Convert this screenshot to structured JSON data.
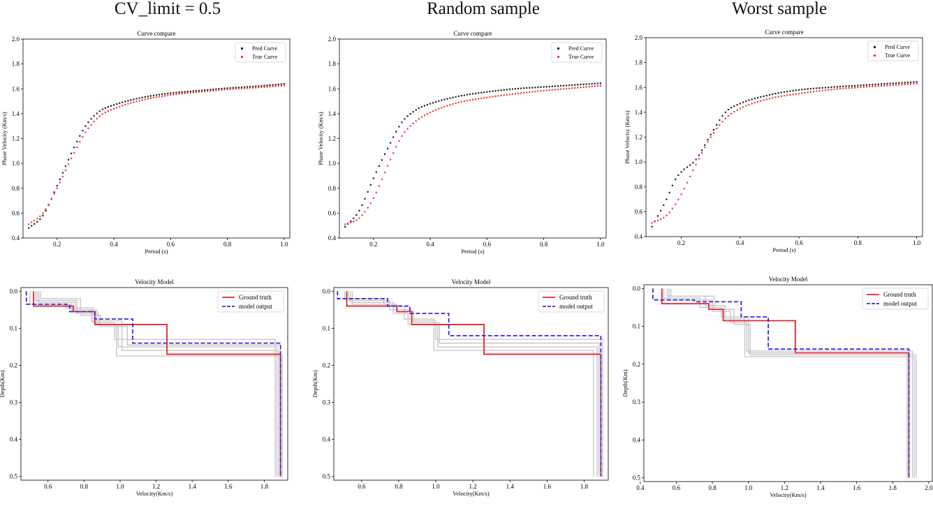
{
  "column_titles": [
    "CV_limit = 0.5",
    "Random sample",
    "Worst sample"
  ],
  "colors": {
    "pred": "#222222",
    "true": "#ee3b3b",
    "ground_truth": "#e8232a",
    "model_output": "#2b2bd9",
    "candidates": "#c8c8c8",
    "axis": "#000000"
  },
  "chart_data": [
    {
      "id": "cv-curve",
      "type": "scatter",
      "title": "Curve compare",
      "xlabel": "Period (s)",
      "ylabel": "Phase Velocity (Km/s)",
      "xlim": [
        0.08,
        1.02
      ],
      "ylim": [
        0.4,
        2.0
      ],
      "xticks": [
        0.2,
        0.4,
        0.6,
        0.8,
        1.0
      ],
      "xtick_labels": [
        "0.2",
        "0.4",
        "0.6",
        "0.8",
        "1.0"
      ],
      "yticks": [
        0.4,
        0.6,
        0.8,
        1.0,
        1.2,
        1.4,
        1.6,
        1.8,
        2.0
      ],
      "ytick_labels": [
        "0.4",
        "0.6",
        "0.8",
        "1.0",
        "1.2",
        "1.4",
        "1.6",
        "1.8",
        "2.0"
      ],
      "legend": [
        "Pred Curve",
        "True Curve"
      ],
      "legend_position": "top-right",
      "series": [
        {
          "name": "Pred Curve",
          "x": [
            0.1,
            0.15,
            0.2,
            0.25,
            0.3,
            0.35,
            0.4,
            0.5,
            0.6,
            0.7,
            0.8,
            0.9,
            1.0
          ],
          "y": [
            0.48,
            0.58,
            0.82,
            1.08,
            1.3,
            1.42,
            1.47,
            1.53,
            1.565,
            1.585,
            1.605,
            1.62,
            1.64
          ]
        },
        {
          "name": "True Curve",
          "x": [
            0.1,
            0.15,
            0.2,
            0.25,
            0.3,
            0.35,
            0.4,
            0.5,
            0.6,
            0.7,
            0.8,
            0.9,
            1.0
          ],
          "y": [
            0.51,
            0.6,
            0.8,
            1.04,
            1.25,
            1.38,
            1.44,
            1.51,
            1.55,
            1.575,
            1.595,
            1.61,
            1.625
          ]
        }
      ]
    },
    {
      "id": "random-curve",
      "type": "scatter",
      "title": "Curve compare",
      "xlabel": "Period (s)",
      "ylabel": "Phase Velocity (Km/s)",
      "xlim": [
        0.08,
        1.02
      ],
      "ylim": [
        0.4,
        2.0
      ],
      "xticks": [
        0.2,
        0.4,
        0.6,
        0.8,
        1.0
      ],
      "xtick_labels": [
        "0.2",
        "0.4",
        "0.6",
        "0.8",
        "1.0"
      ],
      "yticks": [
        0.4,
        0.6,
        0.8,
        1.0,
        1.2,
        1.4,
        1.6,
        1.8,
        2.0
      ],
      "ytick_labels": [
        "0.4",
        "0.6",
        "0.8",
        "1.0",
        "1.2",
        "1.4",
        "1.6",
        "1.8",
        "2.0"
      ],
      "legend": [
        "Pred Curve",
        "True Curve"
      ],
      "legend_position": "top-right",
      "series": [
        {
          "name": "Pred Curve",
          "x": [
            0.1,
            0.15,
            0.2,
            0.25,
            0.3,
            0.35,
            0.4,
            0.5,
            0.6,
            0.7,
            0.8,
            0.9,
            1.0
          ],
          "y": [
            0.49,
            0.62,
            0.88,
            1.12,
            1.33,
            1.43,
            1.48,
            1.54,
            1.575,
            1.6,
            1.615,
            1.63,
            1.645
          ]
        },
        {
          "name": "True Curve",
          "x": [
            0.1,
            0.15,
            0.2,
            0.25,
            0.3,
            0.35,
            0.4,
            0.5,
            0.6,
            0.7,
            0.8,
            0.9,
            1.0
          ],
          "y": [
            0.51,
            0.56,
            0.72,
            0.98,
            1.22,
            1.34,
            1.41,
            1.49,
            1.53,
            1.56,
            1.585,
            1.605,
            1.625
          ]
        }
      ]
    },
    {
      "id": "worst-curve",
      "type": "scatter",
      "title": "Curve compare",
      "xlabel": "Period (s)",
      "ylabel": "Phase Velocity (Km/s)",
      "xlim": [
        0.08,
        1.02
      ],
      "ylim": [
        0.4,
        2.0
      ],
      "xticks": [
        0.2,
        0.4,
        0.6,
        0.8,
        1.0
      ],
      "xtick_labels": [
        "0.2",
        "0.4",
        "0.6",
        "0.8",
        "1.0"
      ],
      "yticks": [
        0.4,
        0.6,
        0.8,
        1.0,
        1.2,
        1.4,
        1.6,
        1.8,
        2.0
      ],
      "ytick_labels": [
        "0.4",
        "0.6",
        "0.8",
        "1.0",
        "1.2",
        "1.4",
        "1.6",
        "1.8",
        "2.0"
      ],
      "legend": [
        "Pred Curve",
        "True Curve"
      ],
      "legend_position": "top-right",
      "series": [
        {
          "name": "Pred Curve",
          "x": [
            0.1,
            0.15,
            0.18,
            0.2,
            0.25,
            0.3,
            0.35,
            0.4,
            0.5,
            0.6,
            0.7,
            0.8,
            0.9,
            1.0
          ],
          "y": [
            0.48,
            0.7,
            0.86,
            0.92,
            1.02,
            1.22,
            1.4,
            1.47,
            1.54,
            1.58,
            1.6,
            1.615,
            1.63,
            1.645
          ]
        },
        {
          "name": "True Curve",
          "x": [
            0.1,
            0.15,
            0.18,
            0.2,
            0.25,
            0.3,
            0.35,
            0.4,
            0.5,
            0.6,
            0.7,
            0.8,
            0.9,
            1.0
          ],
          "y": [
            0.51,
            0.57,
            0.66,
            0.74,
            0.98,
            1.2,
            1.35,
            1.43,
            1.51,
            1.55,
            1.58,
            1.6,
            1.615,
            1.63
          ]
        }
      ]
    },
    {
      "id": "cv-model",
      "type": "line",
      "title": "Velocity Model",
      "xlabel": "Velocity(Km/s)",
      "ylabel": "Depth(Km)",
      "xlim": [
        0.45,
        1.93
      ],
      "ylim": [
        0.51,
        -0.01
      ],
      "y_inverted": true,
      "xticks": [
        0.6,
        0.8,
        1.0,
        1.2,
        1.4,
        1.6,
        1.8
      ],
      "xtick_labels": [
        "0.6",
        "0.8",
        "1.0",
        "1.2",
        "1.4",
        "1.6",
        "1.8"
      ],
      "yticks": [
        0.0,
        0.1,
        0.2,
        0.3,
        0.4,
        0.5
      ],
      "ytick_labels": [
        "0.0",
        "0.1",
        "0.2",
        "0.3",
        "0.4",
        "0.5"
      ],
      "legend": [
        "Ground truth",
        "model output"
      ],
      "legend_position": "top-right",
      "ground_truth": {
        "v": [
          0.52,
          0.74,
          0.86,
          1.26,
          1.89
        ],
        "d": [
          0.04,
          0.055,
          0.09,
          0.17,
          0.5
        ]
      },
      "model_output": {
        "v": [
          0.48,
          0.72,
          0.86,
          1.07,
          1.89
        ],
        "d": [
          0.035,
          0.055,
          0.075,
          0.14,
          0.5
        ]
      },
      "candidates": [
        {
          "v": [
            0.53,
            0.76,
            0.88,
            0.99,
            1.87
          ],
          "d": [
            0.025,
            0.06,
            0.09,
            0.15,
            0.5
          ]
        },
        {
          "v": [
            0.55,
            0.73,
            0.84,
            1.01,
            1.88
          ],
          "d": [
            0.03,
            0.05,
            0.08,
            0.16,
            0.5
          ]
        },
        {
          "v": [
            0.5,
            0.7,
            0.85,
            0.97,
            1.86
          ],
          "d": [
            0.035,
            0.045,
            0.085,
            0.13,
            0.5
          ]
        },
        {
          "v": [
            0.56,
            0.78,
            0.89,
            1.04,
            1.89
          ],
          "d": [
            0.02,
            0.065,
            0.095,
            0.145,
            0.5
          ]
        },
        {
          "v": [
            0.54,
            0.75,
            0.87,
            0.98,
            1.9
          ],
          "d": [
            0.03,
            0.05,
            0.09,
            0.175,
            0.5
          ]
        }
      ]
    },
    {
      "id": "random-model",
      "type": "line",
      "title": "Velocity Model",
      "xlabel": "Velocity(Km/s)",
      "ylabel": "Depth(Km)",
      "xlim": [
        0.45,
        1.93
      ],
      "ylim": [
        0.51,
        -0.01
      ],
      "y_inverted": true,
      "xticks": [
        0.6,
        0.8,
        1.0,
        1.2,
        1.4,
        1.6,
        1.8
      ],
      "xtick_labels": [
        "0.6",
        "0.8",
        "1.0",
        "1.2",
        "1.4",
        "1.6",
        "1.8"
      ],
      "yticks": [
        0.0,
        0.1,
        0.2,
        0.3,
        0.4,
        0.5
      ],
      "ytick_labels": [
        "0.0",
        "0.1",
        "0.2",
        "0.3",
        "0.4",
        "0.5"
      ],
      "legend": [
        "Ground truth",
        "model output"
      ],
      "legend_position": "top-right",
      "ground_truth": {
        "v": [
          0.52,
          0.79,
          0.87,
          1.26,
          1.89
        ],
        "d": [
          0.04,
          0.055,
          0.09,
          0.17,
          0.5
        ]
      },
      "model_output": {
        "v": [
          0.47,
          0.74,
          0.86,
          1.07,
          1.89
        ],
        "d": [
          0.02,
          0.04,
          0.06,
          0.12,
          0.5
        ]
      },
      "candidates": [
        {
          "v": [
            0.53,
            0.75,
            0.87,
            1.0,
            1.9
          ],
          "d": [
            0.025,
            0.05,
            0.08,
            0.13,
            0.5
          ]
        },
        {
          "v": [
            0.54,
            0.77,
            0.85,
            1.01,
            1.87
          ],
          "d": [
            0.03,
            0.06,
            0.09,
            0.15,
            0.5
          ]
        },
        {
          "v": [
            0.51,
            0.72,
            0.83,
            0.99,
            1.85
          ],
          "d": [
            0.02,
            0.04,
            0.075,
            0.16,
            0.5
          ]
        },
        {
          "v": [
            0.55,
            0.79,
            0.88,
            1.02,
            1.88
          ],
          "d": [
            0.035,
            0.055,
            0.085,
            0.14,
            0.5
          ]
        }
      ]
    },
    {
      "id": "worst-model",
      "type": "line",
      "title": "Velocity Model",
      "xlabel": "Velocity(Km/s)",
      "ylabel": "Depth(Km)",
      "xlim": [
        0.42,
        2.02
      ],
      "ylim": [
        0.51,
        -0.01
      ],
      "y_inverted": true,
      "xticks": [
        0.4,
        0.6,
        0.8,
        1.0,
        1.2,
        1.4,
        1.6,
        1.8,
        2.0
      ],
      "xtick_labels": [
        "0.4",
        "0.6",
        "0.8",
        "1.0",
        "1.2",
        "1.4",
        "1.6",
        "1.8",
        "2.0"
      ],
      "yticks": [
        0.0,
        0.1,
        0.2,
        0.3,
        0.4,
        0.5
      ],
      "ytick_labels": [
        "0.0",
        "0.1",
        "0.2",
        "0.3",
        "0.4",
        "0.5"
      ],
      "legend": [
        "Ground truth",
        "model output"
      ],
      "legend_position": "top-right",
      "ground_truth": {
        "v": [
          0.52,
          0.78,
          0.86,
          1.26,
          1.89
        ],
        "d": [
          0.04,
          0.055,
          0.085,
          0.17,
          0.5
        ]
      },
      "model_output": {
        "v": [
          0.47,
          0.7,
          0.96,
          1.11,
          1.89
        ],
        "d": [
          0.03,
          0.035,
          0.075,
          0.16,
          0.5
        ]
      },
      "candidates": [
        {
          "v": [
            0.55,
            0.76,
            0.87,
            0.98,
            1.92
          ],
          "d": [
            0.02,
            0.045,
            0.08,
            0.18,
            0.5
          ]
        },
        {
          "v": [
            0.56,
            0.8,
            0.9,
            0.99,
            1.91
          ],
          "d": [
            0.03,
            0.06,
            0.09,
            0.165,
            0.5
          ]
        },
        {
          "v": [
            0.53,
            0.73,
            0.85,
            1.0,
            1.88
          ],
          "d": [
            0.025,
            0.05,
            0.075,
            0.17,
            0.5
          ]
        },
        {
          "v": [
            0.57,
            0.81,
            0.92,
            1.01,
            1.93
          ],
          "d": [
            0.02,
            0.055,
            0.095,
            0.175,
            0.5
          ]
        }
      ]
    }
  ]
}
